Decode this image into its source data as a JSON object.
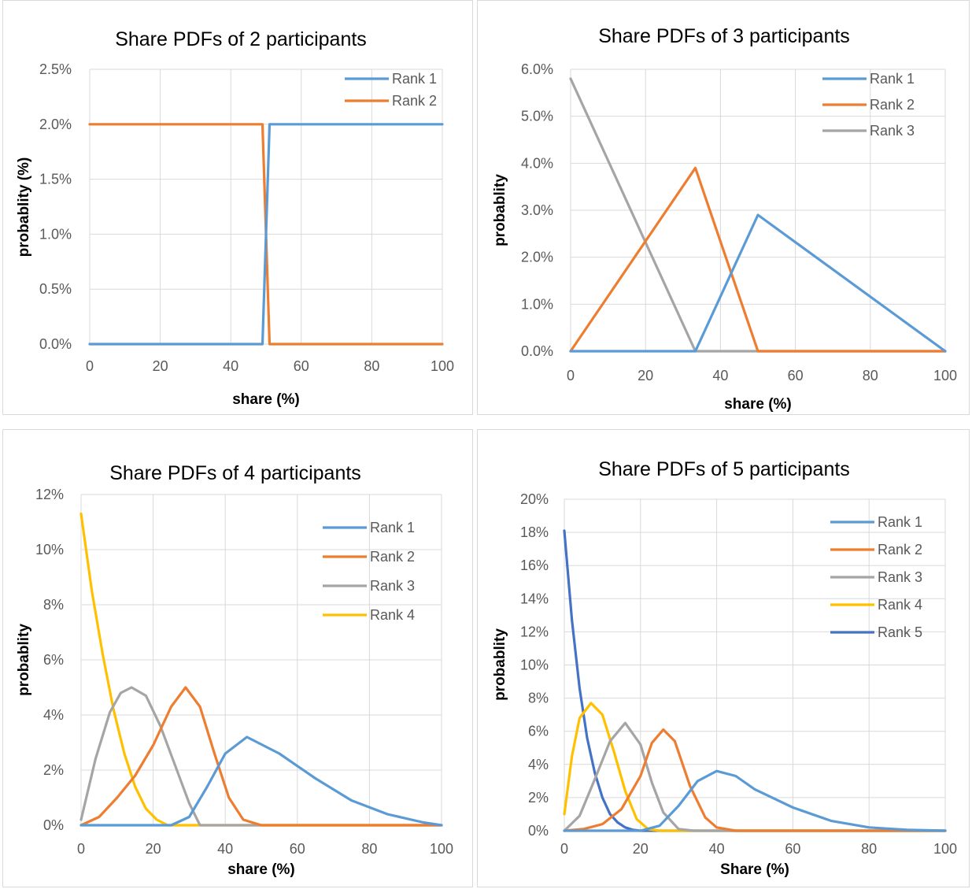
{
  "charts": [
    {
      "title": "Share PDFs of 2 participants",
      "xlabel": "share (%)",
      "ylabel": "probablity (%)",
      "xticks": [
        "0",
        "20",
        "40",
        "60",
        "80",
        "100"
      ],
      "yticks": [
        "0.0%",
        "0.5%",
        "1.0%",
        "1.5%",
        "2.0%",
        "2.5%"
      ],
      "legend": [
        "Rank 1",
        "Rank 2"
      ]
    },
    {
      "title": "Share PDFs of 3 participants",
      "xlabel": "share (%)",
      "ylabel": "probablity",
      "xticks": [
        "0",
        "20",
        "40",
        "60",
        "80",
        "100"
      ],
      "yticks": [
        "0.0%",
        "1.0%",
        "2.0%",
        "3.0%",
        "4.0%",
        "5.0%",
        "6.0%"
      ],
      "legend": [
        "Rank 1",
        "Rank 2",
        "Rank 3"
      ]
    },
    {
      "title": "Share PDFs of 4 participants",
      "xlabel": "share (%)",
      "ylabel": "probablity",
      "xticks": [
        "0",
        "20",
        "40",
        "60",
        "80",
        "100"
      ],
      "yticks": [
        "0%",
        "2%",
        "4%",
        "6%",
        "8%",
        "10%",
        "12%"
      ],
      "legend": [
        "Rank 1",
        "Rank 2",
        "Rank 3",
        "Rank 4"
      ]
    },
    {
      "title": "Share PDFs of 5 participants",
      "xlabel": "Share (%)",
      "ylabel": "probablity",
      "xticks": [
        "0",
        "20",
        "40",
        "60",
        "80",
        "100"
      ],
      "yticks": [
        "0%",
        "2%",
        "4%",
        "6%",
        "8%",
        "10%",
        "12%",
        "14%",
        "16%",
        "18%",
        "20%"
      ],
      "legend": [
        "Rank 1",
        "Rank 2",
        "Rank 3",
        "Rank 4",
        "Rank 5"
      ]
    }
  ],
  "chart_data": [
    {
      "type": "line",
      "title": "Share PDFs of 2 participants",
      "xlabel": "share (%)",
      "ylabel": "probablity (%)",
      "xlim": [
        0,
        100
      ],
      "ylim": [
        0,
        0.025
      ],
      "grid": true,
      "legend_position": "top-right",
      "series": [
        {
          "name": "Rank 1",
          "color": "#5b9bd5",
          "x": [
            0,
            49,
            50,
            51,
            100
          ],
          "y": [
            0,
            0,
            0.01,
            0.02,
            0.02
          ]
        },
        {
          "name": "Rank 2",
          "color": "#ed7d31",
          "x": [
            0,
            49,
            50,
            51,
            100
          ],
          "y": [
            0.02,
            0.02,
            0.01,
            0,
            0
          ]
        }
      ]
    },
    {
      "type": "line",
      "title": "Share PDFs of 3 participants",
      "xlabel": "share (%)",
      "ylabel": "probablity",
      "xlim": [
        0,
        100
      ],
      "ylim": [
        0,
        0.06
      ],
      "grid": true,
      "legend_position": "top-right",
      "series": [
        {
          "name": "Rank 1",
          "color": "#5b9bd5",
          "x": [
            0,
            33.3,
            50,
            100
          ],
          "y": [
            0,
            0,
            0.029,
            0
          ]
        },
        {
          "name": "Rank 2",
          "color": "#ed7d31",
          "x": [
            0,
            33.3,
            50,
            100
          ],
          "y": [
            0,
            0.039,
            0,
            0
          ]
        },
        {
          "name": "Rank 3",
          "color": "#a5a5a5",
          "x": [
            0,
            33.3,
            50,
            100
          ],
          "y": [
            0.058,
            0,
            0,
            0
          ]
        }
      ]
    },
    {
      "type": "line",
      "title": "Share PDFs of 4 participants",
      "xlabel": "share (%)",
      "ylabel": "probablity",
      "xlim": [
        0,
        100
      ],
      "ylim": [
        0,
        0.12
      ],
      "grid": true,
      "legend_position": "top-right",
      "series": [
        {
          "name": "Rank 1",
          "color": "#5b9bd5",
          "x": [
            0,
            25,
            30,
            35,
            40,
            46,
            55,
            65,
            75,
            85,
            95,
            100
          ],
          "y": [
            0,
            0,
            0.003,
            0.014,
            0.026,
            0.032,
            0.026,
            0.017,
            0.009,
            0.004,
            0.001,
            0
          ]
        },
        {
          "name": "Rank 2",
          "color": "#ed7d31",
          "x": [
            0,
            5,
            10,
            15,
            20,
            25,
            29,
            33,
            37,
            41,
            45,
            50,
            100
          ],
          "y": [
            0,
            0.003,
            0.01,
            0.018,
            0.029,
            0.043,
            0.05,
            0.043,
            0.026,
            0.01,
            0.002,
            0,
            0
          ]
        },
        {
          "name": "Rank 3",
          "color": "#a5a5a5",
          "x": [
            0,
            4,
            8,
            11,
            14,
            18,
            22,
            26,
            30,
            33,
            38,
            100
          ],
          "y": [
            0.002,
            0.024,
            0.041,
            0.048,
            0.05,
            0.047,
            0.036,
            0.022,
            0.008,
            0,
            0,
            0
          ]
        },
        {
          "name": "Rank 4",
          "color": "#ffc000",
          "x": [
            0,
            3,
            6,
            9,
            12,
            15,
            18,
            21,
            24,
            25,
            100
          ],
          "y": [
            0.113,
            0.085,
            0.062,
            0.042,
            0.026,
            0.014,
            0.006,
            0.002,
            0,
            0,
            0
          ]
        }
      ]
    },
    {
      "type": "line",
      "title": "Share PDFs of 5 participants",
      "xlabel": "Share (%)",
      "ylabel": "probablity",
      "xlim": [
        0,
        100
      ],
      "ylim": [
        0,
        0.2
      ],
      "grid": true,
      "legend_position": "top-right",
      "series": [
        {
          "name": "Rank 1",
          "color": "#5b9bd5",
          "x": [
            0,
            20,
            25,
            30,
            35,
            40,
            45,
            50,
            60,
            70,
            80,
            90,
            100
          ],
          "y": [
            0,
            0,
            0.003,
            0.015,
            0.03,
            0.036,
            0.033,
            0.025,
            0.014,
            0.006,
            0.002,
            0.0005,
            0
          ]
        },
        {
          "name": "Rank 2",
          "color": "#ed7d31",
          "x": [
            0,
            5,
            10,
            15,
            20,
            23,
            26,
            29,
            33,
            37,
            40,
            45,
            100
          ],
          "y": [
            0,
            0.001,
            0.004,
            0.013,
            0.033,
            0.053,
            0.061,
            0.054,
            0.027,
            0.008,
            0.002,
            0,
            0
          ]
        },
        {
          "name": "Rank 3",
          "color": "#a5a5a5",
          "x": [
            0,
            4,
            8,
            12,
            16,
            20,
            23,
            26,
            30,
            34,
            100
          ],
          "y": [
            0,
            0.009,
            0.031,
            0.054,
            0.065,
            0.052,
            0.029,
            0.011,
            0.001,
            0,
            0
          ]
        },
        {
          "name": "Rank 4",
          "color": "#ffc000",
          "x": [
            0,
            2,
            4,
            7,
            10,
            13,
            16,
            19,
            22,
            25,
            100
          ],
          "y": [
            0.01,
            0.045,
            0.068,
            0.077,
            0.07,
            0.048,
            0.024,
            0.007,
            0.001,
            0,
            0
          ]
        },
        {
          "name": "Rank 5",
          "color": "#4472c4",
          "x": [
            0,
            2,
            4,
            6,
            8,
            10,
            12,
            14,
            16,
            18,
            20,
            100
          ],
          "y": [
            0.181,
            0.127,
            0.086,
            0.056,
            0.035,
            0.02,
            0.01,
            0.005,
            0.002,
            0.0005,
            0,
            0
          ]
        }
      ]
    }
  ]
}
